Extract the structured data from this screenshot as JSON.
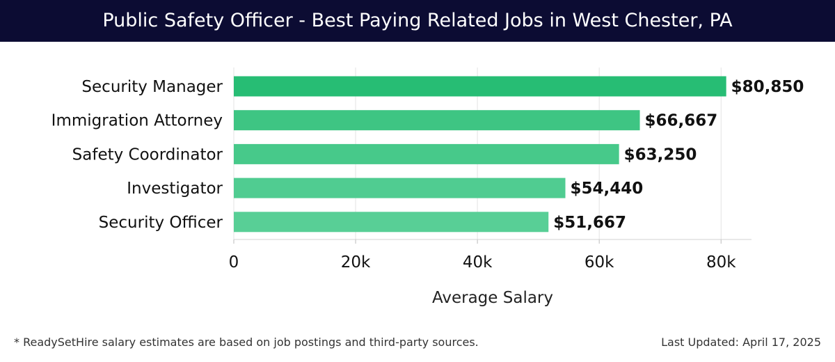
{
  "header": {
    "title": "Public Safety Officer - Best Paying Related Jobs in West Chester, PA"
  },
  "chart_data": {
    "type": "bar",
    "orientation": "horizontal",
    "categories": [
      "Security Manager",
      "Immigration Attorney",
      "Safety Coordinator",
      "Investigator",
      "Security Officer"
    ],
    "values": [
      80850,
      66667,
      63250,
      54440,
      51667
    ],
    "data_labels": [
      "$80,850",
      "$66,667",
      "$63,250",
      "$54,440",
      "$51,667"
    ],
    "bar_colors": [
      "#27bd74",
      "#3ec583",
      "#47c98a",
      "#50cc91",
      "#58cf96"
    ],
    "xlabel": "Average Salary",
    "ylabel": "",
    "xlim": [
      0,
      85000
    ],
    "xticks": [
      0,
      20000,
      40000,
      60000,
      80000
    ],
    "xtick_labels": [
      "0",
      "20k",
      "40k",
      "60k",
      "80k"
    ],
    "grid": "vertical",
    "legend": "none"
  },
  "footer": {
    "note": "* ReadySetHire salary estimates are based on job postings and third-party sources.",
    "updated": "Last Updated: April 17, 2025"
  }
}
